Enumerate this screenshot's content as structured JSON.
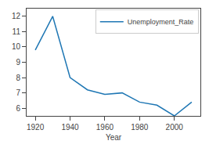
{
  "chart_data": {
    "type": "line",
    "xlabel": "Year",
    "x": [
      1920,
      1930,
      1940,
      1950,
      1960,
      1970,
      1980,
      1990,
      2000,
      2010
    ],
    "series": [
      {
        "name": "Unemployment_Rate",
        "color": "#1f77b4",
        "values": [
          9.8,
          12.0,
          8.0,
          7.2,
          6.9,
          7.0,
          6.4,
          6.2,
          5.5,
          6.4
        ]
      }
    ],
    "xlim": [
      1915,
      2015
    ],
    "ylim": [
      5.5,
      12.5
    ],
    "xticks": [
      1920,
      1940,
      1960,
      1980,
      2000
    ],
    "yticks": [
      6,
      7,
      8,
      9,
      10,
      11,
      12
    ],
    "grid": false,
    "legend": "upper right"
  }
}
